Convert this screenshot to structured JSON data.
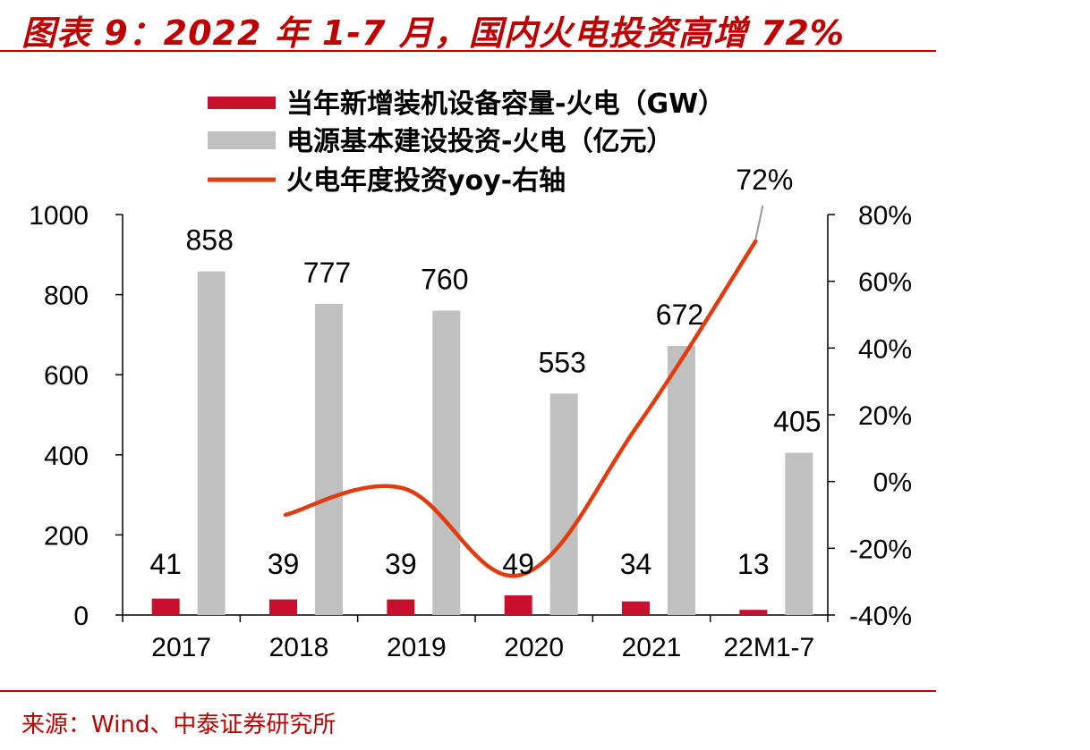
{
  "header": {
    "title": "图表 9：2022 年 1-7 月，国内火电投资高增 72%"
  },
  "footer": {
    "source": "来源：Wind、中泰证券研究所"
  },
  "chart_data": {
    "type": "bar",
    "categories": [
      "2017",
      "2018",
      "2019",
      "2020",
      "2021",
      "22M1-7"
    ],
    "series": [
      {
        "name": "当年新增装机设备容量-火电（GW）",
        "type": "bar",
        "axis": "left",
        "color": "#c8102e",
        "values": [
          41,
          39,
          39,
          49,
          34,
          13
        ]
      },
      {
        "name": "电源基本建设投资-火电（亿元）",
        "type": "bar",
        "axis": "left",
        "color": "#c0c0c0",
        "values": [
          858,
          777,
          760,
          553,
          672,
          405
        ]
      },
      {
        "name": "火电年度投资yoy-右轴",
        "type": "line",
        "axis": "right",
        "color": "#e03c10",
        "values": [
          null,
          -10,
          -2,
          -28,
          17,
          72
        ]
      }
    ],
    "annotation": {
      "label": "72%"
    },
    "ylim_left": [
      0,
      1000
    ],
    "ylim_right": [
      -40,
      80
    ],
    "yticks_left": [
      "0",
      "200",
      "400",
      "600",
      "800",
      "1000"
    ],
    "yticks_right": [
      "-40%",
      "-20%",
      "0%",
      "20%",
      "40%",
      "60%",
      "80%"
    ],
    "grid": false,
    "legend_position": "top"
  }
}
